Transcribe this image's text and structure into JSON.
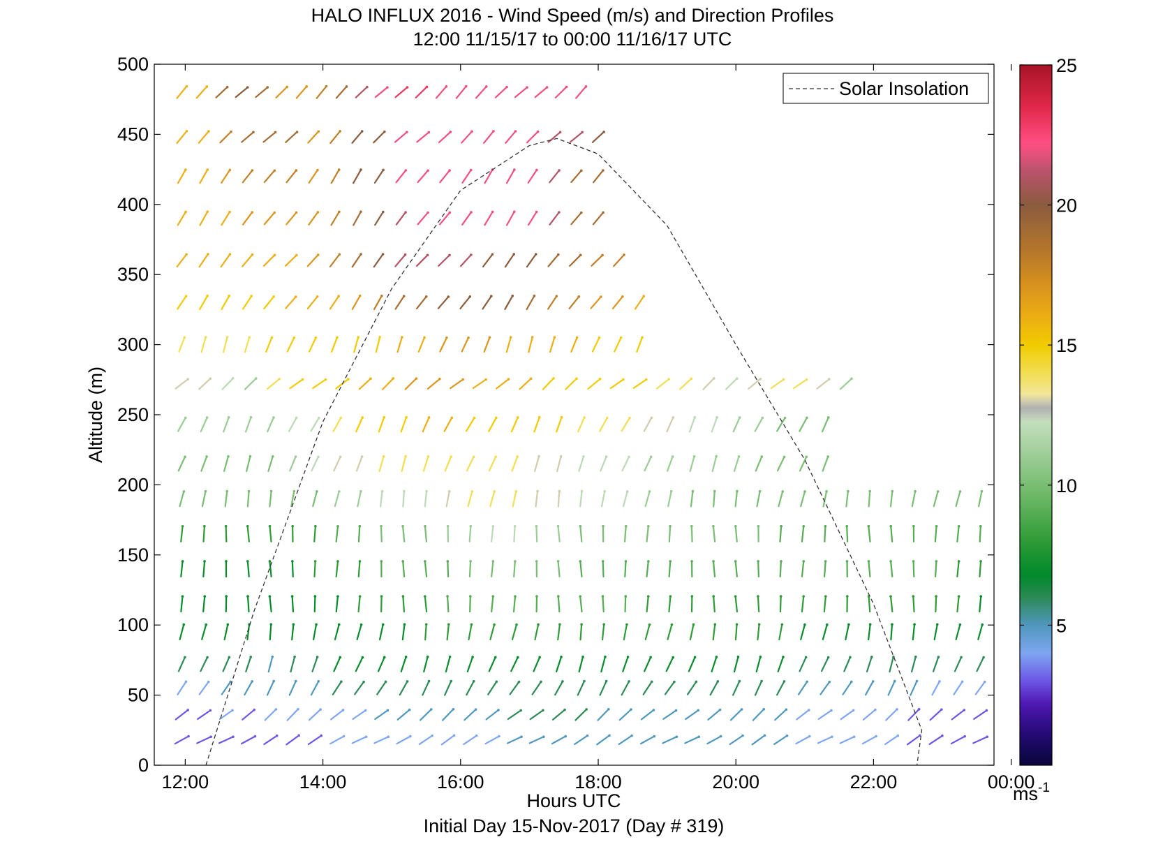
{
  "chart_data": {
    "type": "wind-barb-profile",
    "title": "HALO INFLUX 2016 - Wind Speed (m/s) and Direction Profiles",
    "subtitle": "12:00 11/15/17 to 00:00 11/16/17  UTC",
    "xlabel": "Hours UTC",
    "footer": "Initial Day 15-Nov-2017 (Day # 319)",
    "ylabel": "Altitude (m)",
    "xlim": [
      11.55,
      23.75
    ],
    "ylim": [
      0,
      500
    ],
    "x_ticks": [
      {
        "value": 12,
        "label": "12:00"
      },
      {
        "value": 14,
        "label": "14:00"
      },
      {
        "value": 16,
        "label": "16:00"
      },
      {
        "value": 18,
        "label": "18:00"
      },
      {
        "value": 20,
        "label": "20:00"
      },
      {
        "value": 22,
        "label": "22:00"
      },
      {
        "value": 24,
        "label": "00:00"
      }
    ],
    "y_ticks": [
      0,
      50,
      100,
      150,
      200,
      250,
      300,
      350,
      400,
      450,
      500
    ],
    "legend": {
      "label": "Solar Insolation",
      "position": "top-right"
    },
    "colorbar": {
      "min": 0,
      "max": 25,
      "ticks": [
        5,
        10,
        15,
        20,
        25
      ],
      "unit_base": "ms",
      "unit_exp": "-1"
    },
    "solar_insolation_curve": {
      "style": "dashed",
      "points": [
        [
          12.3,
          0
        ],
        [
          13.0,
          110
        ],
        [
          14.0,
          245
        ],
        [
          15.0,
          340
        ],
        [
          16.0,
          410
        ],
        [
          17.0,
          442
        ],
        [
          17.4,
          447
        ],
        [
          18.0,
          436
        ],
        [
          19.0,
          385
        ],
        [
          20.0,
          300
        ],
        [
          21.0,
          218
        ],
        [
          22.0,
          115
        ],
        [
          22.7,
          25
        ],
        [
          22.63,
          0
        ]
      ]
    },
    "notes_on_data": "Arrows show horizontal wind at ~18 m altitude intervals every ~20 min; direction from barb orientation, colour = speed (m/s).",
    "wind_rows": [
      {
        "altitude": 480,
        "start": 11.95,
        "end": 17.75,
        "direction": 225,
        "speeds": [
          16,
          16,
          19,
          20,
          19,
          17,
          17,
          18,
          19,
          21,
          22,
          23,
          23,
          22,
          22,
          22,
          22,
          22,
          22,
          22,
          22
        ]
      },
      {
        "altitude": 448,
        "start": 11.95,
        "end": 18.0,
        "direction": 225,
        "speeds": [
          16,
          16,
          18,
          19,
          19,
          19,
          17,
          18,
          20,
          20,
          22,
          22,
          22,
          22,
          22,
          22,
          22,
          21,
          21,
          20
        ]
      },
      {
        "altitude": 420,
        "start": 11.95,
        "end": 18.0,
        "direction": 215,
        "speeds": [
          16,
          16,
          17,
          18,
          18,
          18,
          17,
          18,
          20,
          20,
          22,
          22,
          22,
          22,
          22,
          22,
          22,
          21,
          19,
          19
        ]
      },
      {
        "altitude": 390,
        "start": 11.95,
        "end": 18.0,
        "direction": 215,
        "speeds": [
          16,
          16,
          16,
          17,
          17,
          17,
          17,
          18,
          19,
          20,
          21,
          22,
          22,
          22,
          22,
          22,
          22,
          21,
          19,
          19
        ]
      },
      {
        "altitude": 360,
        "start": 11.95,
        "end": 18.3,
        "direction": 220,
        "speeds": [
          16,
          16,
          16,
          16,
          16,
          16,
          17,
          18,
          19,
          20,
          21,
          21,
          21,
          21,
          20,
          20,
          20,
          19,
          19,
          18,
          18
        ]
      },
      {
        "altitude": 330,
        "start": 11.95,
        "end": 18.6,
        "direction": 215,
        "speeds": [
          15,
          15,
          15,
          15,
          15,
          16,
          16,
          16,
          17,
          18,
          19,
          19,
          20,
          20,
          20,
          20,
          19,
          18,
          18,
          17,
          17,
          16
        ]
      },
      {
        "altitude": 300,
        "start": 11.95,
        "end": 18.6,
        "direction": 200,
        "speeds": [
          14,
          14,
          14,
          14,
          15,
          15,
          15,
          15,
          15,
          15,
          16,
          16,
          17,
          17,
          17,
          16,
          16,
          16,
          16,
          15,
          15,
          15
        ]
      },
      {
        "altitude": 272,
        "start": 11.95,
        "end": 21.6,
        "direction": 230,
        "speeds": [
          13,
          13,
          12,
          11,
          14,
          15,
          15,
          15,
          16,
          16,
          17,
          17,
          17,
          16,
          16,
          16,
          15,
          15,
          15,
          15,
          15,
          14,
          14,
          13,
          12,
          13,
          14,
          14,
          13,
          11
        ]
      },
      {
        "altitude": 243,
        "start": 11.95,
        "end": 21.3,
        "direction": 205,
        "speeds": [
          11,
          11,
          11,
          11,
          11,
          12,
          12,
          14,
          15,
          15,
          15,
          16,
          16,
          15,
          15,
          15,
          15,
          15,
          14,
          14,
          14,
          13,
          13,
          12,
          12,
          11,
          11,
          10,
          10,
          10
        ]
      },
      {
        "altitude": 215,
        "start": 11.95,
        "end": 21.3,
        "direction": 200,
        "speeds": [
          10,
          10,
          10,
          10,
          10,
          11,
          12,
          13,
          13,
          14,
          14,
          14,
          14,
          14,
          14,
          14,
          13,
          13,
          12,
          12,
          12,
          11,
          11,
          11,
          11,
          11,
          10,
          10,
          10,
          10
        ]
      },
      {
        "altitude": 190,
        "start": 11.95,
        "end": 23.55,
        "direction": 190,
        "speeds": [
          10,
          10,
          10,
          10,
          10,
          10,
          10,
          11,
          11,
          12,
          12,
          12,
          13,
          14,
          14,
          14,
          13,
          13,
          12,
          12,
          12,
          11,
          11,
          10,
          10,
          10,
          10,
          10,
          10,
          10,
          10,
          10,
          10,
          10,
          10,
          10,
          10
        ]
      },
      {
        "altitude": 165,
        "start": 11.95,
        "end": 23.55,
        "direction": 180,
        "speeds": [
          8,
          8,
          8,
          8,
          8,
          8,
          8,
          9,
          9,
          10,
          10,
          10,
          11,
          11,
          12,
          12,
          11,
          11,
          10,
          10,
          10,
          10,
          10,
          10,
          10,
          10,
          10,
          9,
          9,
          9,
          9,
          9,
          9,
          9,
          9,
          9,
          9
        ]
      },
      {
        "altitude": 140,
        "start": 11.95,
        "end": 23.55,
        "direction": 180,
        "speeds": [
          7,
          7,
          7,
          7,
          7,
          7,
          8,
          8,
          8,
          9,
          9,
          9,
          9,
          10,
          10,
          10,
          10,
          10,
          9,
          9,
          9,
          9,
          9,
          9,
          9,
          9,
          9,
          9,
          9,
          9,
          9,
          9,
          9,
          9,
          9,
          8,
          8
        ]
      },
      {
        "altitude": 115,
        "start": 11.95,
        "end": 23.55,
        "direction": 180,
        "speeds": [
          7,
          7,
          7,
          7,
          7,
          7,
          7,
          7,
          8,
          8,
          8,
          8,
          9,
          9,
          9,
          9,
          9,
          9,
          9,
          9,
          9,
          8,
          8,
          8,
          8,
          8,
          8,
          8,
          8,
          8,
          8,
          8,
          8,
          8,
          8,
          8,
          7
        ]
      },
      {
        "altitude": 95,
        "start": 11.95,
        "end": 23.55,
        "direction": 190,
        "speeds": [
          7,
          7,
          7,
          7,
          7,
          7,
          7,
          7,
          7,
          7,
          7,
          8,
          8,
          8,
          8,
          8,
          8,
          8,
          8,
          8,
          8,
          8,
          8,
          8,
          8,
          8,
          8,
          8,
          7,
          7,
          7,
          7,
          7,
          7,
          7,
          7,
          7
        ]
      },
      {
        "altitude": 72,
        "start": 11.95,
        "end": 23.55,
        "direction": 200,
        "speeds": [
          6,
          6,
          6,
          6,
          5,
          6,
          6,
          7,
          7,
          7,
          7,
          7,
          7,
          7,
          7,
          7,
          7,
          7,
          7,
          7,
          7,
          7,
          7,
          7,
          7,
          7,
          7,
          7,
          6,
          6,
          6,
          6,
          6,
          6,
          6,
          6,
          6
        ]
      },
      {
        "altitude": 55,
        "start": 11.95,
        "end": 23.55,
        "direction": 210,
        "speeds": [
          4,
          4,
          5,
          5,
          5,
          5,
          5,
          6,
          6,
          6,
          6,
          6,
          6,
          6,
          6,
          6,
          6,
          6,
          6,
          6,
          6,
          6,
          6,
          6,
          6,
          6,
          6,
          6,
          5,
          5,
          5,
          5,
          5,
          5,
          4,
          4,
          4
        ]
      },
      {
        "altitude": 36,
        "start": 11.95,
        "end": 23.55,
        "direction": 230,
        "speeds": [
          3,
          3,
          4,
          3,
          4,
          4,
          4,
          4,
          4,
          5,
          5,
          5,
          5,
          5,
          5,
          6,
          6,
          6,
          6,
          5,
          5,
          5,
          5,
          5,
          5,
          5,
          5,
          5,
          4,
          4,
          4,
          4,
          4,
          3,
          3,
          3,
          3
        ]
      },
      {
        "altitude": 18,
        "start": 11.95,
        "end": 23.55,
        "direction": 240,
        "speeds": [
          3,
          3,
          3,
          3,
          3,
          3,
          3,
          4,
          4,
          4,
          4,
          4,
          4,
          4,
          4,
          5,
          5,
          5,
          5,
          5,
          5,
          5,
          5,
          5,
          5,
          5,
          5,
          5,
          4,
          4,
          4,
          4,
          4,
          3,
          3,
          3,
          3
        ]
      }
    ]
  }
}
